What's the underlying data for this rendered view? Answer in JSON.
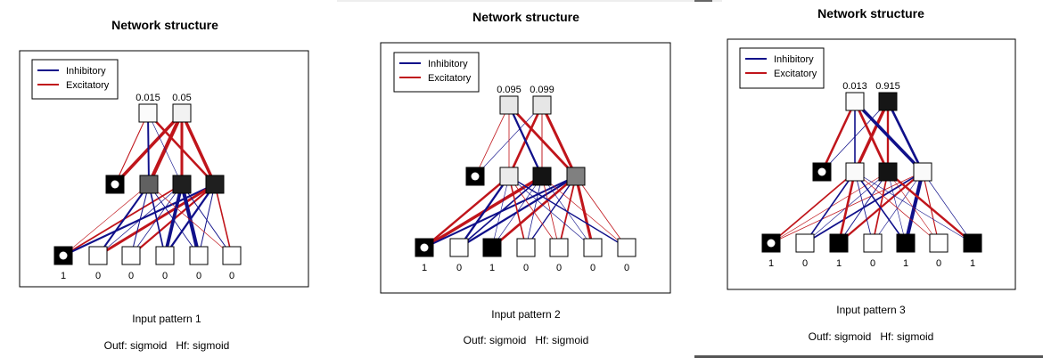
{
  "colors": {
    "inhibitory": "#10108a",
    "excitatory": "#c0151b",
    "frame": "#000000",
    "divider": "#555555"
  },
  "panels": [
    {
      "title": "Network structure",
      "legend": {
        "inhibitory": "Inhibitory",
        "excitatory": "Excitatory"
      },
      "caption": "Input pattern 1",
      "functions": "Outf: sigmoid   Hf: sigmoid",
      "input_values": [
        "1",
        "0",
        "0",
        "0",
        "0",
        "0"
      ],
      "output_values": [
        "0.015",
        "0.05"
      ],
      "input_activation": [
        1,
        0,
        0,
        0,
        0,
        0
      ],
      "hidden_activation": [
        0.62,
        0.88,
        0.88
      ],
      "output_activation": [
        0.015,
        0.05
      ]
    },
    {
      "title": "Network structure",
      "legend": {
        "inhibitory": "Inhibitory",
        "excitatory": "Excitatory"
      },
      "caption": "Input pattern 2",
      "functions": "Outf: sigmoid   Hf: sigmoid",
      "input_values": [
        "1",
        "0",
        "1",
        "0",
        "0",
        "0",
        "0"
      ],
      "output_values": [
        "0.095",
        "0.099"
      ],
      "input_activation": [
        1,
        0,
        1,
        0,
        0,
        0,
        0
      ],
      "hidden_activation": [
        0.08,
        0.92,
        0.5
      ],
      "output_activation": [
        0.095,
        0.099
      ]
    },
    {
      "title": "Network structure",
      "legend": {
        "inhibitory": "Inhibitory",
        "excitatory": "Excitatory"
      },
      "caption": "Input pattern 3",
      "functions": "Outf: sigmoid   Hf: sigmoid",
      "input_values": [
        "1",
        "0",
        "1",
        "0",
        "1",
        "0",
        "1"
      ],
      "output_values": [
        "0.013",
        "0.915"
      ],
      "input_activation": [
        1,
        0,
        1,
        0,
        1,
        0,
        1
      ],
      "hidden_activation": [
        0.02,
        0.92,
        0.02
      ],
      "output_activation": [
        0.013,
        0.915
      ]
    }
  ]
}
